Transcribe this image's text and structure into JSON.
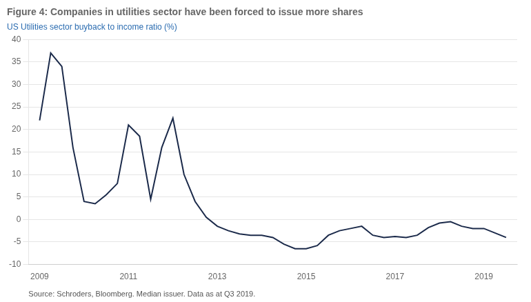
{
  "chart_data": {
    "type": "line",
    "title": "Figure 4: Companies in utilities sector have been forced to issue more shares",
    "subtitle": "US Utilities sector buyback to income ratio (%)",
    "source": "Source: Schroders, Bloomberg. Median issuer. Data as at Q3 2019.",
    "x": [
      2009.0,
      2009.25,
      2009.5,
      2009.75,
      2010.0,
      2010.25,
      2010.5,
      2010.75,
      2011.0,
      2011.25,
      2011.5,
      2011.75,
      2012.0,
      2012.25,
      2012.5,
      2012.75,
      2013.0,
      2013.25,
      2013.5,
      2013.75,
      2014.0,
      2014.25,
      2014.5,
      2014.75,
      2015.0,
      2015.25,
      2015.5,
      2015.75,
      2016.0,
      2016.25,
      2016.5,
      2016.75,
      2017.0,
      2017.25,
      2017.5,
      2017.75,
      2018.0,
      2018.25,
      2018.5,
      2018.75,
      2019.0,
      2019.25,
      2019.5
    ],
    "values": [
      22.0,
      37.0,
      34.0,
      16.0,
      4.0,
      3.5,
      5.5,
      8.0,
      21.0,
      18.5,
      4.5,
      16.0,
      22.5,
      10.0,
      4.0,
      0.5,
      -1.5,
      -2.5,
      -3.2,
      -3.5,
      -3.5,
      -4.0,
      -5.5,
      -6.5,
      -6.5,
      -5.8,
      -3.5,
      -2.5,
      -2.0,
      -1.5,
      -3.5,
      -4.0,
      -3.8,
      -4.0,
      -3.5,
      -1.8,
      -0.8,
      -0.5,
      -1.5,
      -2.0,
      -2.0,
      -3.0,
      -4.0
    ],
    "color": "#1b2a4a",
    "xlim": [
      2008.75,
      2019.75
    ],
    "xticks": [
      2009,
      2011,
      2013,
      2015,
      2017,
      2019
    ],
    "ylim": [
      -10,
      40
    ],
    "yticks": [
      -10,
      -5,
      0,
      5,
      10,
      15,
      20,
      25,
      30,
      35,
      40
    ],
    "grid": "y"
  }
}
